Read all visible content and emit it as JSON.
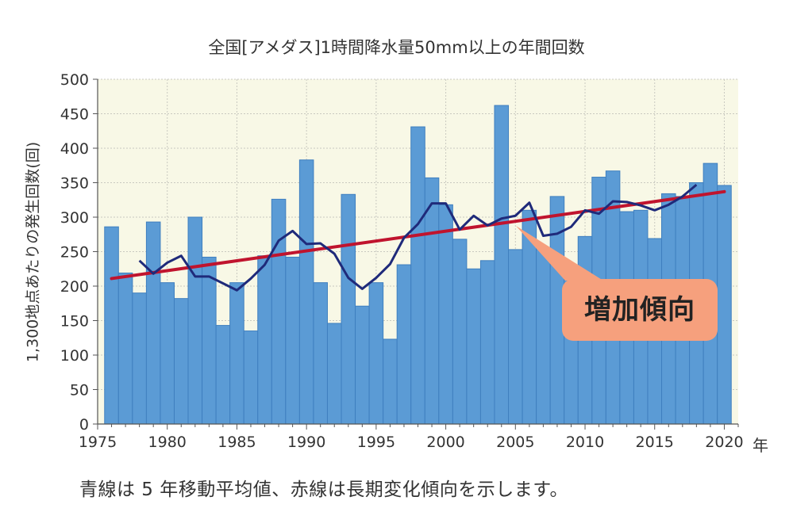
{
  "chart_data": {
    "type": "bar",
    "title": "全国[アメダス]1時間降水量50mm以上の年間回数",
    "ylabel": "1,300地点あたりの発生回数(回)",
    "xunit": "年",
    "ylim": [
      0,
      500
    ],
    "yticks": [
      0,
      50,
      100,
      150,
      200,
      250,
      300,
      350,
      400,
      450,
      500
    ],
    "xticks": [
      1975,
      1980,
      1985,
      1990,
      1995,
      2000,
      2005,
      2010,
      2015,
      2020
    ],
    "grid": true,
    "years": [
      1976,
      1977,
      1978,
      1979,
      1980,
      1981,
      1982,
      1983,
      1984,
      1985,
      1986,
      1987,
      1988,
      1989,
      1990,
      1991,
      1992,
      1993,
      1994,
      1995,
      1996,
      1997,
      1998,
      1999,
      2000,
      2001,
      2002,
      2003,
      2004,
      2005,
      2006,
      2007,
      2008,
      2009,
      2010,
      2011,
      2012,
      2013,
      2014,
      2015,
      2016,
      2017,
      2018,
      2019,
      2020
    ],
    "values": [
      286,
      219,
      190,
      293,
      205,
      182,
      300,
      242,
      143,
      205,
      135,
      244,
      326,
      242,
      383,
      205,
      146,
      333,
      171,
      205,
      123,
      231,
      431,
      357,
      318,
      268,
      225,
      237,
      462,
      253,
      310,
      253,
      330,
      230,
      272,
      358,
      367,
      308,
      310,
      269,
      334,
      330,
      350,
      378,
      346
    ],
    "moving_average": {
      "years": [
        1978,
        1979,
        1980,
        1981,
        1982,
        1983,
        1984,
        1985,
        1986,
        1987,
        1988,
        1989,
        1990,
        1991,
        1992,
        1993,
        1994,
        1995,
        1996,
        1997,
        1998,
        1999,
        2000,
        2001,
        2002,
        2003,
        2004,
        2005,
        2006,
        2007,
        2008,
        2009,
        2010,
        2011,
        2012,
        2013,
        2014,
        2015,
        2016,
        2017,
        2018
      ],
      "values": [
        237,
        218,
        234,
        244,
        214,
        214,
        204,
        194,
        211,
        231,
        266,
        280,
        261,
        262,
        247,
        212,
        196,
        212,
        232,
        270,
        290,
        320,
        320,
        282,
        302,
        288,
        298,
        302,
        321,
        273,
        276,
        286,
        310,
        305,
        323,
        322,
        317,
        310,
        318,
        330,
        347
      ]
    },
    "trend": {
      "x": [
        1976,
        2020
      ],
      "y": [
        211,
        337
      ]
    },
    "annotation": "増加傾向",
    "caption": "青線は 5 年移動平均値、赤線は長期変化傾向を示します。",
    "colors": {
      "bar": "#5b9bd5",
      "bar_edge": "#3f7fbf",
      "moving_average": "#1f2a7a",
      "trend": "#c0142e",
      "plot_bg": "#f8f8e6",
      "callout": "#f6a07d"
    }
  }
}
